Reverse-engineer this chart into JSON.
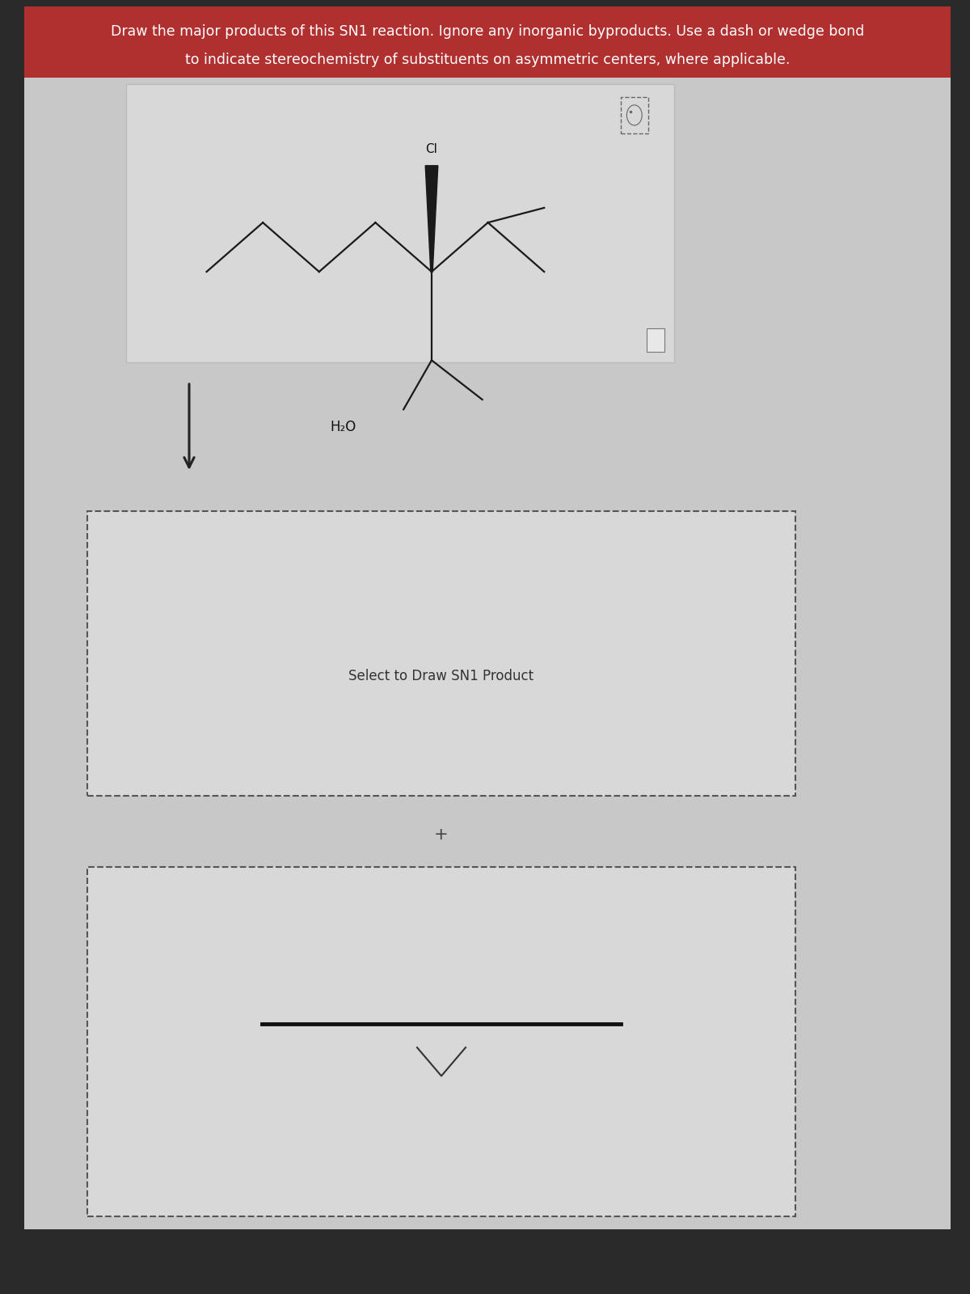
{
  "outer_bg": "#2a2a2a",
  "inner_bg": "#c8c8c8",
  "header_color": "#b03030",
  "header_text_line1": "Draw the major products of this SN1 reaction. Ignore any inorganic byproducts. Use a dash or wedge bond",
  "header_text_line2": "to indicate stereochemistry of substituents on asymmetric centers, where applicable.",
  "header_text_color": "#ffffff",
  "header_fontsize": 12.5,
  "mol_box_color": "#d8d8d8",
  "mol_box_edge": "#bbbbbb",
  "solvent_label": "H₂O",
  "solvent_fontsize": 12,
  "cl_label": "Cl",
  "cl_fontsize": 11,
  "bond_color": "#1a1a1a",
  "line_width": 1.6,
  "product_label": "Select to Draw SN1 Product",
  "product_label_fontsize": 12,
  "plus_label": "+",
  "plus_fontsize": 15,
  "dashed_edge": "#555555",
  "bottom_bar_color": "#111111"
}
